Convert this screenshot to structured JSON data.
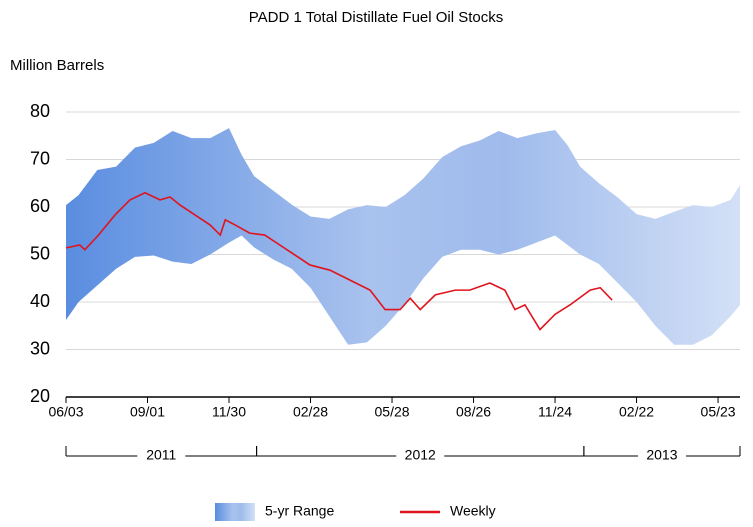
{
  "chart_data": {
    "type": "line",
    "title": "PADD 1 Total Distillate Fuel Oil Stocks",
    "ylabel": "Million Barrels",
    "ylim": [
      20,
      80
    ],
    "yticks": [
      20,
      30,
      40,
      50,
      60,
      70,
      80
    ],
    "xlim": [
      0,
      107.5
    ],
    "xticks": [
      {
        "value": 0,
        "label": "06/03"
      },
      {
        "value": 13,
        "label": "09/01"
      },
      {
        "value": 26,
        "label": "11/30"
      },
      {
        "value": 39,
        "label": "02/28"
      },
      {
        "value": 52,
        "label": "05/28"
      },
      {
        "value": 65,
        "label": "08/26"
      },
      {
        "value": 78,
        "label": "11/24"
      },
      {
        "value": 91,
        "label": "02/22"
      },
      {
        "value": 104,
        "label": "05/23"
      }
    ],
    "year_groups": [
      {
        "label": "2011",
        "start": 0,
        "end": 30.4
      },
      {
        "label": "2012",
        "start": 30.4,
        "end": 82.6
      },
      {
        "label": "2013",
        "start": 82.6,
        "end": 107.5
      }
    ],
    "grid": true,
    "legend": "bottom",
    "series": [
      {
        "name": "5-yr Range",
        "color": "#5a8de0",
        "x": [
          0,
          2,
          5,
          8,
          11,
          14,
          17,
          20,
          23,
          26,
          28,
          30,
          33,
          36,
          39,
          42,
          45,
          48,
          51,
          54,
          57,
          60,
          63,
          66,
          69,
          72,
          75,
          78,
          80,
          82,
          85,
          88,
          91,
          94,
          97,
          100,
          103,
          106,
          107.5
        ],
        "high": [
          60.4,
          62.5,
          67.8,
          68.5,
          72.5,
          73.5,
          76,
          74.5,
          74.5,
          76.6,
          71,
          66.5,
          63.5,
          60.5,
          58,
          57.5,
          59.5,
          60.4,
          60,
          62.5,
          66,
          70.5,
          72.8,
          74,
          76,
          74.5,
          75.5,
          76.2,
          73,
          68.5,
          65,
          62,
          58.5,
          57.5,
          59,
          60.4,
          60,
          61.5,
          64.6
        ],
        "low": [
          36.2,
          40,
          43.5,
          47,
          49.5,
          49.8,
          48.5,
          48,
          50,
          52.5,
          54,
          51.5,
          49,
          47,
          43,
          37,
          31,
          31.5,
          35,
          39.5,
          45,
          49.5,
          51,
          51,
          50,
          51,
          52.5,
          54,
          52,
          50,
          48,
          44,
          40,
          35,
          31,
          31,
          33,
          37,
          39.4
        ]
      },
      {
        "name": "Weekly",
        "color": "#e0141e",
        "x": [
          0,
          2.2,
          3,
          5.2,
          7.8,
          10.2,
          12.6,
          15,
          16.6,
          18.2,
          20.6,
          23,
          24.6,
          25.4,
          27,
          29.3,
          31.7,
          34.1,
          36.5,
          38.9,
          42.1,
          45.3,
          48.5,
          50.9,
          53.3,
          54.9,
          56.5,
          58.9,
          62.1,
          64.4,
          67.6,
          70,
          71.6,
          73.2,
          75.6,
          78,
          80.4,
          83.6,
          85.2,
          87.1
        ],
        "values": [
          51.4,
          52,
          51,
          54.1,
          58.3,
          61.5,
          63,
          61.5,
          62.1,
          60.4,
          58.3,
          56.2,
          54.1,
          57.3,
          56.2,
          54.5,
          54.1,
          52,
          49.9,
          47.8,
          46.7,
          44.6,
          42.5,
          38.4,
          38.4,
          40.8,
          38.4,
          41.5,
          42.5,
          42.5,
          44,
          42.5,
          38.4,
          39.4,
          34.2,
          37.4,
          39.4,
          42.5,
          43,
          40.4
        ]
      }
    ]
  }
}
